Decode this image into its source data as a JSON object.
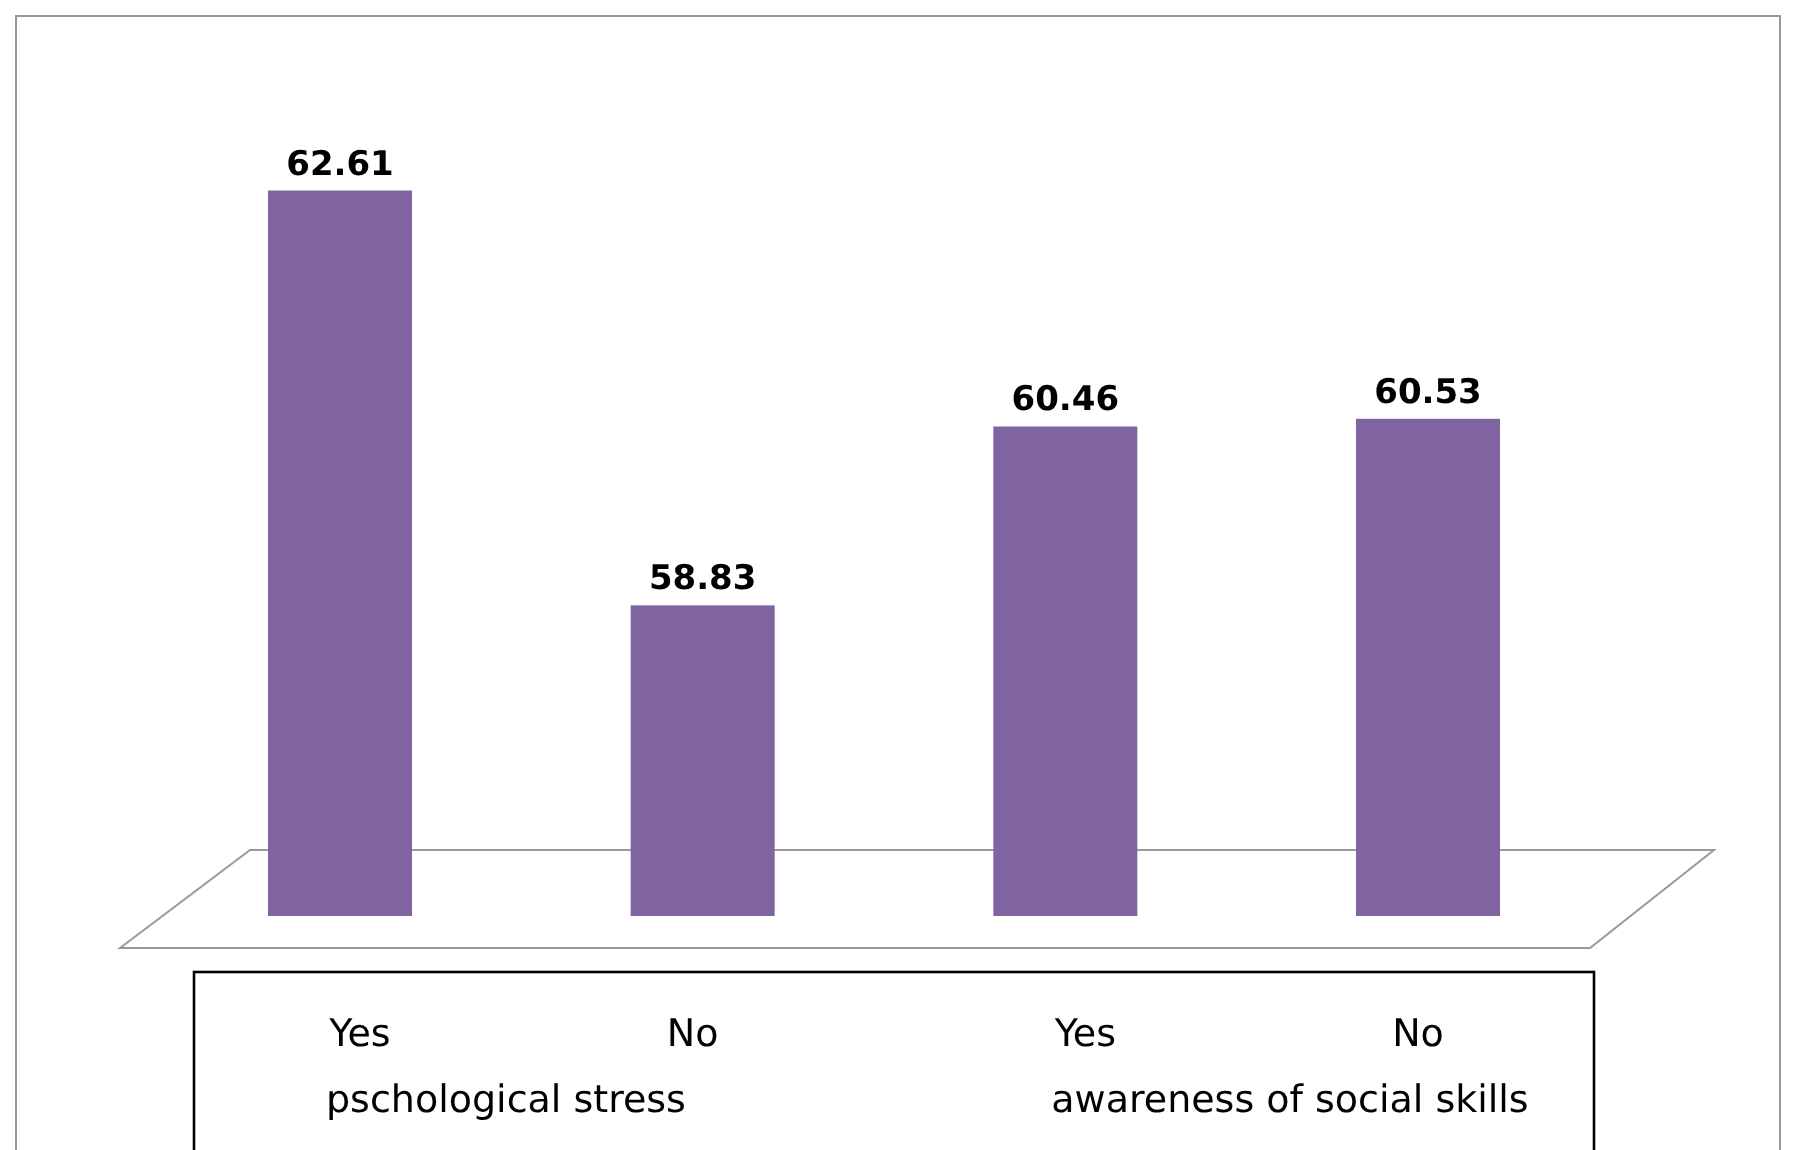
{
  "chart_data": {
    "type": "bar",
    "categories": [
      "Yes",
      "No",
      "Yes",
      "No"
    ],
    "values": [
      62.61,
      58.83,
      60.46,
      60.53
    ],
    "color": "#8064a2",
    "data_labels": true,
    "ylim": [
      56,
      64.2
    ],
    "tick_labels": "x",
    "annotations": [
      "pschological stress",
      "awareness of social skills"
    ]
  }
}
